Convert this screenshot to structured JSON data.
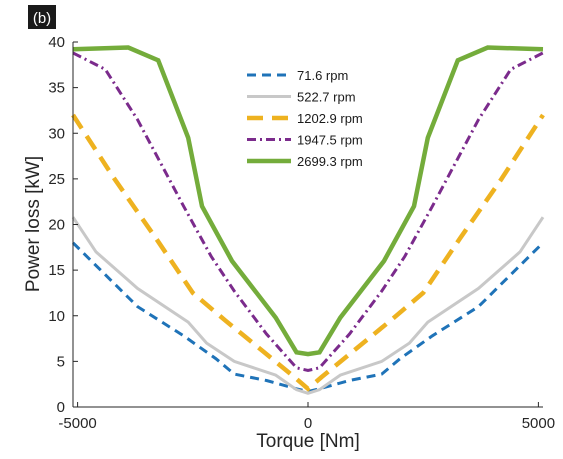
{
  "chart_data": {
    "type": "line",
    "panel_label": "(b)",
    "xlabel": "Torque [Nm]",
    "ylabel": "Power loss [kW]",
    "xlim": [
      -5100,
      5100
    ],
    "ylim": [
      0,
      40
    ],
    "xticks": [
      -5000,
      0,
      5000
    ],
    "yticks": [
      0,
      5,
      10,
      15,
      20,
      25,
      30,
      35,
      40
    ],
    "xtick_labels": [
      "-5000",
      "0",
      "5000"
    ],
    "ytick_labels": [
      "0",
      "5",
      "10",
      "15",
      "20",
      "25",
      "30",
      "35",
      "40"
    ],
    "grid": false,
    "legend_position": "top-center",
    "series": [
      {
        "name": "71.6 rpm",
        "color": "#1f73b8",
        "style": "dashed",
        "x": [
          -5100,
          -4400,
          -3700,
          -2700,
          -2000,
          -1600,
          -900,
          -250,
          0,
          250,
          900,
          1600,
          2000,
          2700,
          3700,
          4400,
          5100
        ],
        "y": [
          18.0,
          14.5,
          11.0,
          7.8,
          5.3,
          3.6,
          2.9,
          2.0,
          1.7,
          2.0,
          2.9,
          3.6,
          5.3,
          7.8,
          11.0,
          14.5,
          18.0
        ]
      },
      {
        "name": "522.7 rpm",
        "color": "#c8c8c8",
        "style": "solid",
        "x": [
          -5100,
          -4600,
          -3700,
          -2600,
          -2200,
          -1600,
          -700,
          -250,
          0,
          250,
          700,
          1600,
          2200,
          2600,
          3700,
          4600,
          5100
        ],
        "y": [
          20.8,
          17.0,
          13.0,
          9.3,
          7.0,
          5.0,
          3.5,
          1.9,
          1.5,
          1.9,
          3.5,
          5.0,
          7.0,
          9.3,
          13.0,
          17.0,
          20.8
        ]
      },
      {
        "name": "1202.9 rpm",
        "color": "#eeb220",
        "style": "longdash",
        "x": [
          -5100,
          -4200,
          -3300,
          -2500,
          -1800,
          -1000,
          -300,
          0,
          300,
          1000,
          1800,
          2500,
          3300,
          4200,
          5100
        ],
        "y": [
          32.0,
          25.0,
          18.5,
          12.5,
          9.5,
          6.2,
          3.3,
          2.0,
          3.3,
          6.2,
          9.5,
          12.5,
          18.5,
          25.0,
          32.0
        ]
      },
      {
        "name": "1947.5 rpm",
        "color": "#7b2b8c",
        "style": "dashdot",
        "x": [
          -5100,
          -4400,
          -3700,
          -2700,
          -2100,
          -1600,
          -900,
          -250,
          0,
          250,
          900,
          1600,
          2100,
          2700,
          3700,
          4400,
          5100
        ],
        "y": [
          38.8,
          37.0,
          31.5,
          22.0,
          16.5,
          12.7,
          8.0,
          4.3,
          4.0,
          4.3,
          8.0,
          12.7,
          16.5,
          22.0,
          31.5,
          37.0,
          38.8
        ]
      },
      {
        "name": "2699.3 rpm",
        "color": "#74ac3b",
        "style": "solid",
        "x": [
          -5100,
          -3900,
          -3250,
          -2600,
          -2300,
          -1650,
          -700,
          -250,
          0,
          250,
          700,
          1650,
          2300,
          2600,
          3250,
          3900,
          5100
        ],
        "y": [
          39.2,
          39.4,
          38.0,
          29.5,
          22.0,
          16.0,
          9.8,
          6.0,
          5.8,
          6.0,
          9.8,
          16.0,
          22.0,
          29.5,
          38.0,
          39.4,
          39.2
        ]
      }
    ]
  }
}
